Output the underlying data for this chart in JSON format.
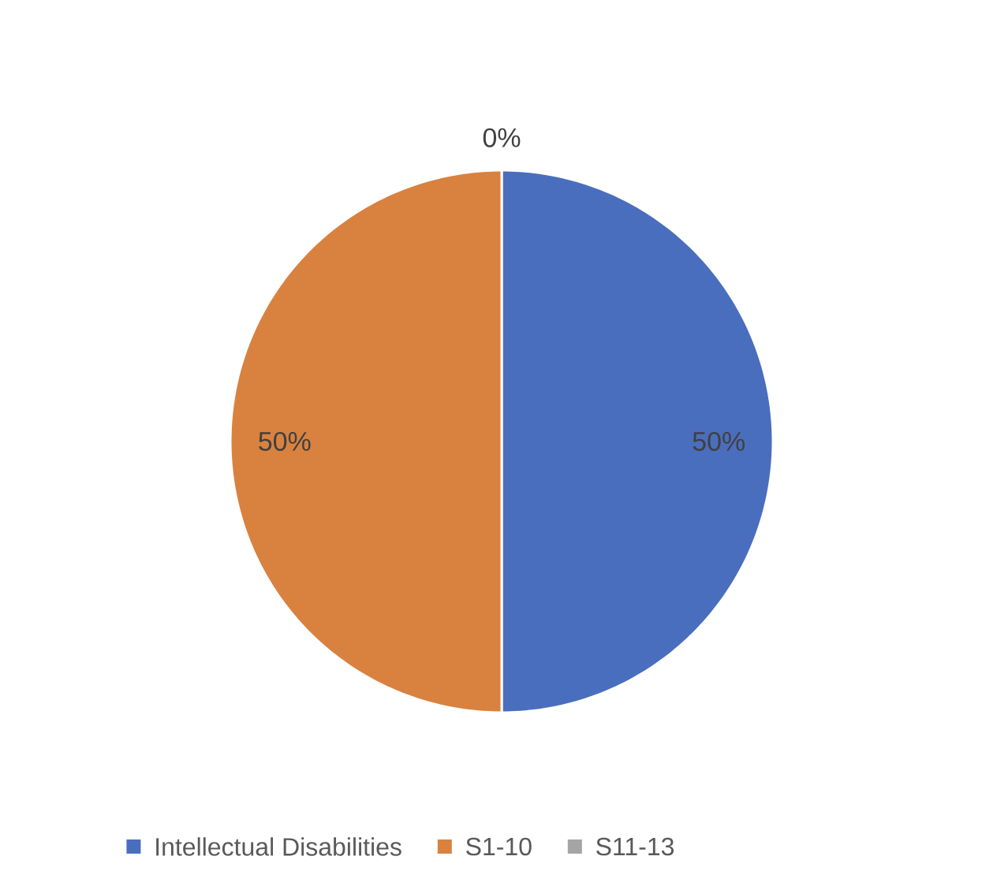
{
  "chart_data": {
    "type": "pie",
    "categories": [
      "Intellectual Disabilities",
      "S1-10",
      "S11-13"
    ],
    "values": [
      50,
      50,
      0
    ],
    "value_labels": [
      "50%",
      "50%",
      "0%"
    ],
    "colors": [
      "#4a6ebe",
      "#d9823f",
      "#a5a5a5"
    ],
    "legend": "bottom"
  }
}
